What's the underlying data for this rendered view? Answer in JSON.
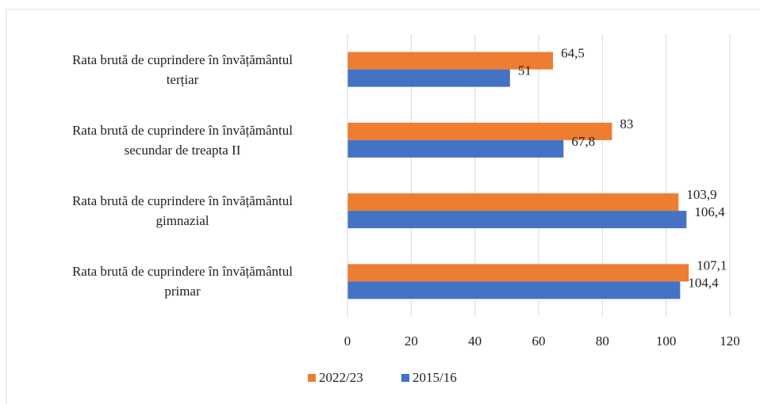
{
  "chart_data": {
    "type": "hbar",
    "categories": [
      "Rata brută de cuprindere în învățământul\nterțiar",
      "Rata brută de cuprindere în învățământul\nsecundar de treapta II",
      "Rata brută de cuprindere în învățământul\ngimnazial",
      "Rata brută de cuprindere în învățământul\nprimar"
    ],
    "series": [
      {
        "name": "2022/23",
        "color": "#ed7d31",
        "values": [
          64.5,
          83,
          103.9,
          107.1
        ],
        "value_labels": [
          "64,5",
          "83",
          "103,9",
          "107,1"
        ]
      },
      {
        "name": "2015/16",
        "color": "#4472c4",
        "values": [
          51,
          67.8,
          106.4,
          104.4
        ],
        "value_labels": [
          "51",
          "67,8",
          "106,4",
          "104,4"
        ]
      }
    ],
    "xlim": [
      0,
      120
    ],
    "xticks": [
      0,
      20,
      40,
      60,
      80,
      100,
      120
    ],
    "grid": true,
    "legend": "bottom"
  }
}
